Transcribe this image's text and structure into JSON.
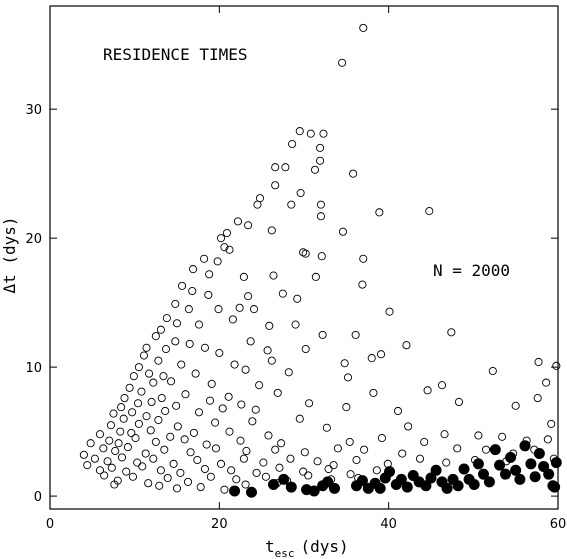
{
  "chart_data": {
    "type": "scatter",
    "title": "",
    "xlabel": "t",
    "xlabel_sub": "esc",
    "xlabel_unit": "(dys)",
    "ylabel": "Δt (dys)",
    "xlim": [
      0,
      60
    ],
    "ylim": [
      -1,
      38
    ],
    "xticks": [
      0,
      20,
      40,
      60
    ],
    "yticks": [
      0,
      10,
      20,
      30
    ],
    "grid": false,
    "annotations": [
      "RESIDENCE TIMES",
      "N = 2000"
    ],
    "series": [
      {
        "marker": "open-circle",
        "points": [
          [
            37.0,
            36.3
          ],
          [
            34.5,
            33.6
          ],
          [
            29.5,
            28.3
          ],
          [
            30.8,
            28.1
          ],
          [
            32.3,
            28.1
          ],
          [
            31.9,
            27.0
          ],
          [
            28.6,
            27.3
          ],
          [
            31.9,
            26.0
          ],
          [
            26.6,
            25.5
          ],
          [
            27.8,
            25.5
          ],
          [
            31.3,
            25.3
          ],
          [
            26.6,
            24.1
          ],
          [
            35.8,
            25.0
          ],
          [
            24.8,
            23.1
          ],
          [
            29.6,
            23.5
          ],
          [
            24.5,
            22.6
          ],
          [
            28.5,
            22.6
          ],
          [
            32.0,
            22.6
          ],
          [
            32.0,
            21.7
          ],
          [
            44.8,
            22.1
          ],
          [
            38.9,
            22.0
          ],
          [
            22.2,
            21.3
          ],
          [
            23.4,
            21.0
          ],
          [
            20.9,
            20.4
          ],
          [
            26.2,
            20.6
          ],
          [
            34.6,
            20.5
          ],
          [
            20.2,
            20.0
          ],
          [
            20.6,
            19.3
          ],
          [
            29.9,
            18.9
          ],
          [
            30.2,
            18.8
          ],
          [
            32.1,
            18.6
          ],
          [
            37.0,
            18.4
          ],
          [
            21.2,
            19.1
          ],
          [
            18.2,
            18.4
          ],
          [
            19.8,
            18.2
          ],
          [
            16.9,
            17.6
          ],
          [
            18.8,
            17.2
          ],
          [
            22.9,
            17.0
          ],
          [
            26.4,
            17.1
          ],
          [
            31.4,
            17.0
          ],
          [
            36.9,
            16.4
          ],
          [
            15.6,
            16.3
          ],
          [
            16.8,
            15.9
          ],
          [
            18.7,
            15.6
          ],
          [
            23.4,
            15.5
          ],
          [
            27.5,
            15.7
          ],
          [
            29.2,
            15.3
          ],
          [
            14.8,
            14.9
          ],
          [
            16.4,
            14.5
          ],
          [
            19.9,
            14.5
          ],
          [
            22.4,
            14.6
          ],
          [
            24.1,
            14.5
          ],
          [
            40.1,
            14.3
          ],
          [
            13.8,
            13.8
          ],
          [
            15.0,
            13.4
          ],
          [
            17.6,
            13.3
          ],
          [
            21.6,
            13.7
          ],
          [
            25.9,
            13.2
          ],
          [
            29.0,
            13.3
          ],
          [
            47.4,
            12.7
          ],
          [
            13.1,
            12.9
          ],
          [
            12.5,
            12.4
          ],
          [
            14.8,
            12.0
          ],
          [
            16.5,
            11.8
          ],
          [
            18.3,
            11.5
          ],
          [
            23.7,
            12.0
          ],
          [
            32.2,
            12.5
          ],
          [
            36.1,
            12.5
          ],
          [
            42.1,
            11.7
          ],
          [
            11.4,
            11.5
          ],
          [
            13.7,
            11.4
          ],
          [
            20.0,
            11.1
          ],
          [
            25.7,
            11.3
          ],
          [
            30.2,
            11.4
          ],
          [
            39.1,
            11.0
          ],
          [
            38.0,
            10.7
          ],
          [
            11.1,
            10.9
          ],
          [
            12.8,
            10.5
          ],
          [
            15.5,
            10.2
          ],
          [
            21.8,
            10.2
          ],
          [
            26.2,
            10.5
          ],
          [
            34.8,
            10.3
          ],
          [
            57.7,
            10.4
          ],
          [
            59.8,
            10.1
          ],
          [
            10.5,
            10.0
          ],
          [
            11.7,
            9.5
          ],
          [
            13.4,
            9.3
          ],
          [
            17.2,
            9.5
          ],
          [
            23.1,
            9.8
          ],
          [
            28.2,
            9.6
          ],
          [
            52.3,
            9.7
          ],
          [
            9.9,
            9.3
          ],
          [
            12.2,
            8.8
          ],
          [
            14.3,
            8.9
          ],
          [
            19.1,
            8.7
          ],
          [
            24.7,
            8.6
          ],
          [
            35.2,
            9.2
          ],
          [
            46.3,
            8.6
          ],
          [
            58.6,
            8.8
          ],
          [
            9.4,
            8.4
          ],
          [
            10.8,
            8.1
          ],
          [
            13.2,
            7.6
          ],
          [
            16.0,
            7.9
          ],
          [
            21.1,
            7.7
          ],
          [
            26.9,
            8.0
          ],
          [
            38.2,
            8.0
          ],
          [
            44.6,
            8.2
          ],
          [
            57.6,
            7.6
          ],
          [
            8.8,
            7.6
          ],
          [
            10.4,
            7.2
          ],
          [
            12.0,
            7.3
          ],
          [
            14.9,
            7.0
          ],
          [
            18.9,
            7.4
          ],
          [
            22.6,
            7.1
          ],
          [
            30.6,
            7.2
          ],
          [
            35.0,
            6.9
          ],
          [
            48.3,
            7.3
          ],
          [
            55.0,
            7.0
          ],
          [
            8.4,
            6.9
          ],
          [
            9.7,
            6.5
          ],
          [
            11.4,
            6.2
          ],
          [
            13.6,
            6.6
          ],
          [
            17.6,
            6.5
          ],
          [
            20.4,
            6.8
          ],
          [
            24.3,
            6.7
          ],
          [
            41.1,
            6.6
          ],
          [
            7.5,
            6.4
          ],
          [
            8.7,
            6.0
          ],
          [
            10.5,
            5.6
          ],
          [
            12.8,
            5.9
          ],
          [
            15.1,
            5.4
          ],
          [
            19.5,
            5.7
          ],
          [
            23.9,
            5.8
          ],
          [
            29.5,
            6.0
          ],
          [
            42.3,
            5.4
          ],
          [
            59.2,
            5.6
          ],
          [
            7.2,
            5.5
          ],
          [
            8.3,
            5.0
          ],
          [
            9.6,
            4.9
          ],
          [
            11.9,
            5.1
          ],
          [
            14.2,
            4.6
          ],
          [
            17.0,
            4.9
          ],
          [
            21.2,
            5.0
          ],
          [
            25.8,
            4.7
          ],
          [
            32.7,
            5.3
          ],
          [
            46.6,
            4.8
          ],
          [
            50.6,
            4.7
          ],
          [
            5.9,
            4.8
          ],
          [
            7.0,
            4.3
          ],
          [
            8.1,
            4.1
          ],
          [
            10.1,
            4.5
          ],
          [
            12.5,
            4.2
          ],
          [
            15.9,
            4.4
          ],
          [
            18.5,
            4.0
          ],
          [
            22.5,
            4.3
          ],
          [
            27.3,
            4.1
          ],
          [
            35.4,
            4.2
          ],
          [
            39.2,
            4.5
          ],
          [
            44.2,
            4.2
          ],
          [
            53.4,
            4.6
          ],
          [
            56.3,
            4.3
          ],
          [
            58.8,
            4.4
          ],
          [
            4.8,
            4.1
          ],
          [
            6.3,
            3.7
          ],
          [
            7.7,
            3.5
          ],
          [
            9.2,
            3.8
          ],
          [
            11.3,
            3.3
          ],
          [
            13.5,
            3.6
          ],
          [
            16.6,
            3.4
          ],
          [
            19.6,
            3.7
          ],
          [
            23.2,
            3.5
          ],
          [
            26.6,
            3.6
          ],
          [
            30.1,
            3.4
          ],
          [
            34.0,
            3.7
          ],
          [
            37.1,
            3.6
          ],
          [
            41.6,
            3.3
          ],
          [
            48.1,
            3.7
          ],
          [
            51.5,
            3.6
          ],
          [
            54.7,
            3.3
          ],
          [
            57.2,
            3.6
          ],
          [
            4.0,
            3.2
          ],
          [
            5.3,
            2.9
          ],
          [
            6.8,
            2.7
          ],
          [
            8.5,
            3.0
          ],
          [
            10.3,
            2.6
          ],
          [
            12.2,
            2.9
          ],
          [
            14.6,
            2.5
          ],
          [
            17.4,
            2.8
          ],
          [
            20.2,
            2.5
          ],
          [
            22.9,
            2.9
          ],
          [
            25.2,
            2.6
          ],
          [
            28.4,
            2.9
          ],
          [
            31.6,
            2.7
          ],
          [
            33.5,
            2.4
          ],
          [
            36.2,
            2.8
          ],
          [
            39.9,
            2.5
          ],
          [
            43.7,
            2.9
          ],
          [
            46.8,
            2.6
          ],
          [
            50.2,
            2.8
          ],
          [
            53.9,
            2.7
          ],
          [
            59.5,
            2.9
          ],
          [
            4.4,
            2.4
          ],
          [
            5.9,
            2.0
          ],
          [
            7.3,
            2.2
          ],
          [
            9.0,
            1.9
          ],
          [
            10.9,
            2.3
          ],
          [
            13.1,
            2.0
          ],
          [
            15.4,
            1.8
          ],
          [
            18.3,
            2.1
          ],
          [
            21.4,
            2.0
          ],
          [
            24.4,
            1.8
          ],
          [
            27.1,
            2.2
          ],
          [
            29.9,
            1.9
          ],
          [
            32.9,
            2.1
          ],
          [
            35.5,
            1.7
          ],
          [
            38.6,
            2.0
          ],
          [
            6.4,
            1.6
          ],
          [
            8.0,
            1.2
          ],
          [
            9.8,
            1.5
          ],
          [
            11.6,
            1.0
          ],
          [
            13.9,
            1.4
          ],
          [
            16.3,
            1.1
          ],
          [
            19.0,
            1.5
          ],
          [
            22.0,
            1.3
          ],
          [
            25.5,
            1.5
          ],
          [
            28.0,
            1.2
          ],
          [
            30.5,
            1.6
          ],
          [
            33.2,
            1.3
          ],
          [
            36.4,
            1.4
          ],
          [
            7.6,
            0.9
          ],
          [
            12.9,
            0.8
          ],
          [
            17.8,
            0.7
          ],
          [
            23.1,
            0.9
          ],
          [
            26.8,
            1.0
          ],
          [
            15.0,
            0.6
          ],
          [
            20.6,
            0.5
          ]
        ]
      },
      {
        "marker": "filled-circle",
        "points": [
          [
            21.8,
            0.4
          ],
          [
            23.8,
            0.3
          ],
          [
            26.4,
            0.9
          ],
          [
            27.6,
            1.3
          ],
          [
            28.5,
            0.7
          ],
          [
            30.3,
            0.5
          ],
          [
            31.2,
            0.4
          ],
          [
            32.2,
            0.8
          ],
          [
            32.8,
            1.1
          ],
          [
            33.6,
            0.6
          ],
          [
            36.2,
            0.8
          ],
          [
            36.9,
            1.2
          ],
          [
            37.6,
            0.6
          ],
          [
            38.4,
            1.0
          ],
          [
            39.0,
            0.6
          ],
          [
            39.6,
            1.4
          ],
          [
            40.1,
            1.9
          ],
          [
            40.9,
            0.9
          ],
          [
            41.5,
            1.3
          ],
          [
            42.2,
            0.7
          ],
          [
            42.9,
            1.6
          ],
          [
            43.6,
            1.1
          ],
          [
            44.4,
            0.8
          ],
          [
            45.0,
            1.4
          ],
          [
            45.6,
            2.0
          ],
          [
            46.3,
            1.1
          ],
          [
            46.9,
            0.6
          ],
          [
            47.6,
            1.3
          ],
          [
            48.2,
            0.8
          ],
          [
            48.9,
            2.1
          ],
          [
            49.5,
            1.3
          ],
          [
            50.1,
            0.9
          ],
          [
            50.6,
            2.5
          ],
          [
            51.2,
            1.7
          ],
          [
            51.9,
            1.1
          ],
          [
            52.6,
            3.6
          ],
          [
            53.1,
            2.4
          ],
          [
            53.8,
            1.7
          ],
          [
            54.4,
            3.0
          ],
          [
            55.0,
            2.0
          ],
          [
            55.5,
            1.3
          ],
          [
            56.1,
            3.9
          ],
          [
            56.8,
            2.5
          ],
          [
            57.3,
            1.5
          ],
          [
            57.8,
            3.3
          ],
          [
            58.3,
            2.3
          ],
          [
            58.9,
            1.7
          ],
          [
            59.4,
            0.8
          ],
          [
            59.8,
            2.6
          ],
          [
            59.6,
            0.7
          ]
        ]
      }
    ]
  }
}
